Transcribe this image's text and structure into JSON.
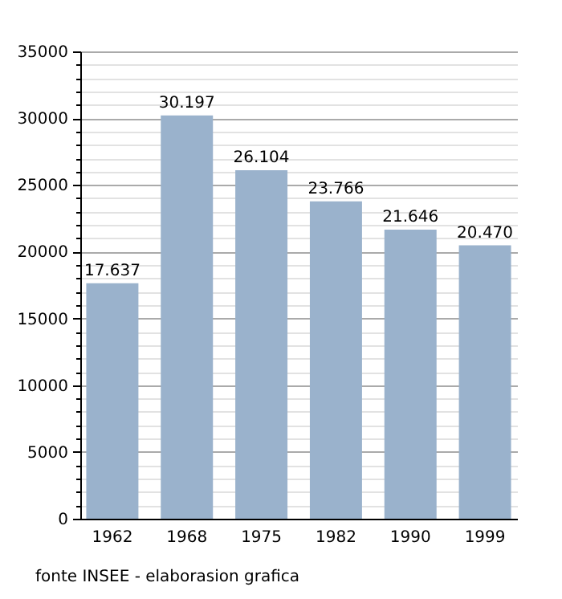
{
  "chart_data": {
    "type": "bar",
    "categories": [
      "1962",
      "1968",
      "1975",
      "1982",
      "1990",
      "1999"
    ],
    "values": [
      17637,
      30197,
      26104,
      23766,
      21646,
      20470
    ],
    "value_labels": [
      "17.637",
      "30.197",
      "26.104",
      "23.766",
      "21.646",
      "20.470"
    ],
    "color": "#9ab2cc",
    "ylim": [
      0,
      35000
    ],
    "yticks": [
      0,
      {
        "value": 1000,
        "label": null
      },
      {
        "value": 2000,
        "label": null
      },
      {
        "value": 3000,
        "label": null
      },
      {
        "value": 4000,
        "label": null
      },
      5000,
      {
        "value": 6000,
        "label": null
      },
      {
        "value": 7000,
        "label": null
      },
      {
        "value": 8000,
        "label": null
      },
      {
        "value": 9000,
        "label": null
      },
      10000,
      {
        "value": 11000,
        "label": null
      },
      {
        "value": 12000,
        "label": null
      },
      {
        "value": 13000,
        "label": null
      },
      {
        "value": 14000,
        "label": null
      },
      15000,
      {
        "value": 16000,
        "label": null
      },
      {
        "value": 17000,
        "label": null
      },
      {
        "value": 18000,
        "label": null
      },
      {
        "value": 19000,
        "label": null
      },
      20000,
      {
        "value": 21000,
        "label": null
      },
      {
        "value": 22000,
        "label": null
      },
      {
        "value": 23000,
        "label": null
      },
      {
        "value": 24000,
        "label": null
      },
      25000,
      {
        "value": 26000,
        "label": null
      },
      {
        "value": 27000,
        "label": null
      },
      {
        "value": 28000,
        "label": null
      },
      {
        "value": 29000,
        "label": null
      },
      30000,
      {
        "value": 31000,
        "label": null
      },
      {
        "value": 32000,
        "label": null
      },
      {
        "value": 33000,
        "label": null
      },
      {
        "value": 34000,
        "label": null
      },
      35000
    ],
    "grid": true,
    "annotations": [
      "fonte INSEE - elaborasion grafica"
    ]
  }
}
